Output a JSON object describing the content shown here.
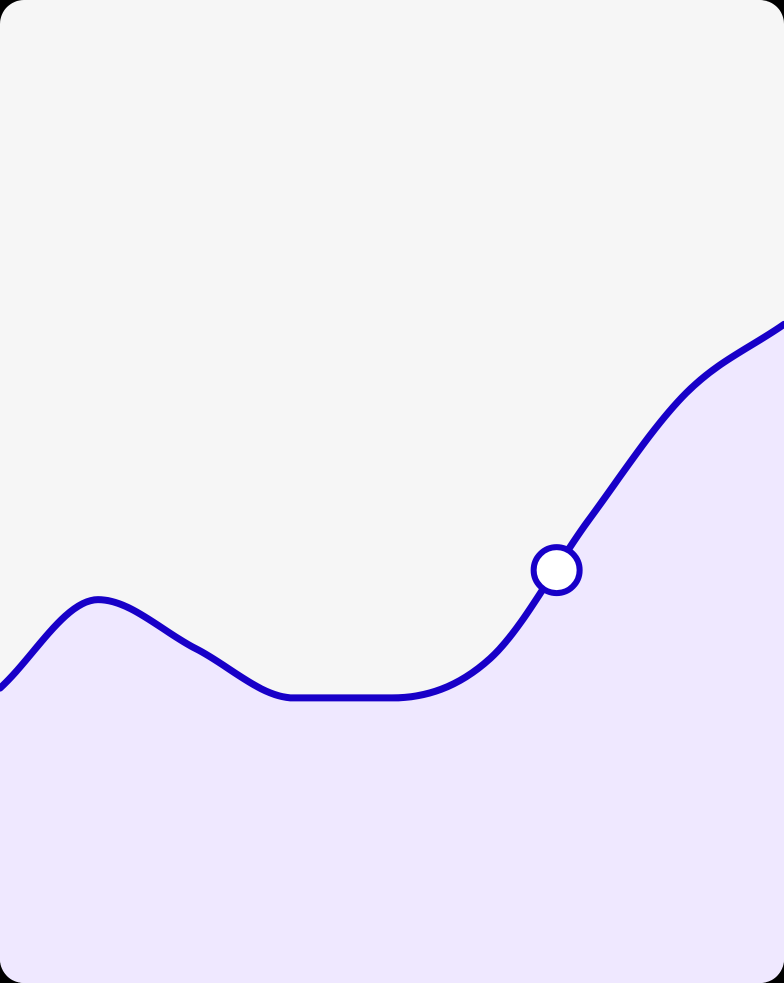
{
  "colors": {
    "card_background": "#f6f6f6",
    "frame": "#000000",
    "line": "#1800c8",
    "area_fill": "#efe8ff",
    "marker_fill": "#ffffff"
  },
  "chart_data": {
    "type": "area",
    "title": "",
    "xlabel": "",
    "ylabel": "",
    "x": [
      0,
      1,
      2,
      3,
      4,
      5,
      6,
      7,
      8
    ],
    "y": [
      0.3,
      0.39,
      0.34,
      0.29,
      0.29,
      0.33,
      0.47,
      0.6,
      0.67
    ],
    "xlim": [
      0,
      8
    ],
    "ylim": [
      0,
      1
    ],
    "grid": false,
    "legend": "none",
    "highlighted_point": {
      "x": 5.68,
      "y": 0.42
    },
    "curve": "smooth"
  }
}
